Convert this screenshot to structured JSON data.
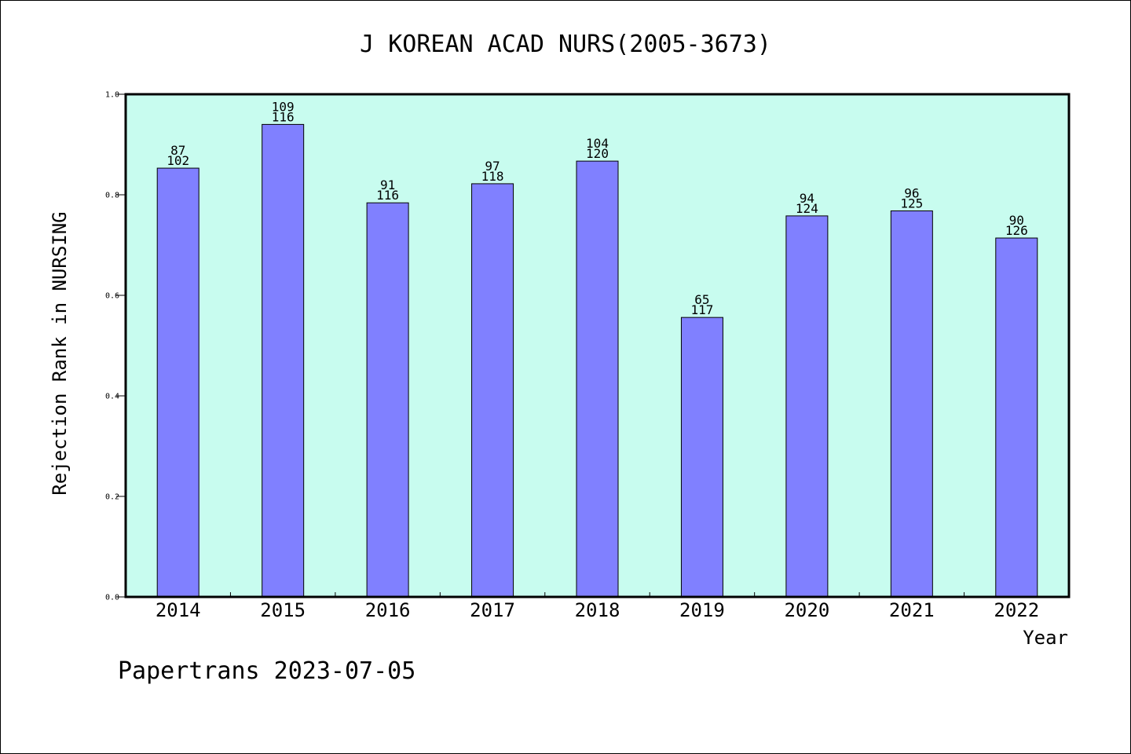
{
  "chart_data": {
    "type": "bar",
    "title": "J KOREAN ACAD NURS(2005-3673)",
    "xlabel": "Year",
    "ylabel": "Rejection Rank in NURSING",
    "ylim": [
      0,
      1.0
    ],
    "yticks": [
      "0.0",
      "0.2",
      "0.4",
      "0.6",
      "0.8",
      "1.0"
    ],
    "categories": [
      "2014",
      "2015",
      "2016",
      "2017",
      "2018",
      "2019",
      "2020",
      "2021",
      "2022"
    ],
    "values": [
      0.853,
      0.94,
      0.784,
      0.822,
      0.867,
      0.556,
      0.758,
      0.768,
      0.714
    ],
    "data_labels_top": [
      "87",
      "109",
      "91",
      "97",
      "104",
      "65",
      "94",
      "96",
      "90"
    ],
    "data_labels_bottom": [
      "102",
      "116",
      "116",
      "118",
      "120",
      "117",
      "124",
      "125",
      "126"
    ],
    "bar_color": "#8080ff",
    "plot_background": "#c8fcef",
    "grid": false
  },
  "footer": {
    "text": "Papertrans 2023-07-05"
  }
}
